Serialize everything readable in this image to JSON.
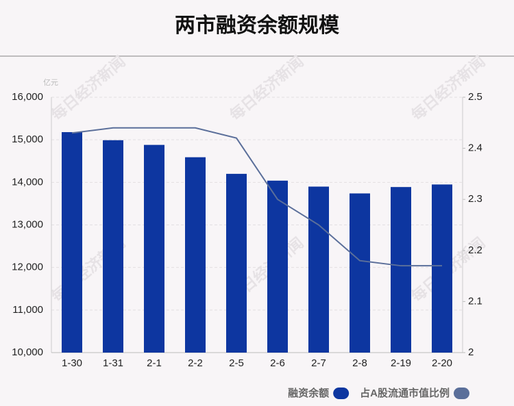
{
  "chart_data": {
    "type": "bar_line",
    "title": "两市融资余额规模",
    "unit_label": "亿元",
    "watermark": "每日经济新闻",
    "categories": [
      "1-30",
      "1-31",
      "2-1",
      "2-2",
      "2-5",
      "2-6",
      "2-7",
      "2-8",
      "2-19",
      "2-20"
    ],
    "series": [
      {
        "name": "融资余额",
        "type": "bar",
        "color": "#0d36a0",
        "values": [
          15180,
          14990,
          14880,
          14590,
          14200,
          14040,
          13900,
          13740,
          13890,
          13950
        ]
      },
      {
        "name": "占A股流通市值比例",
        "type": "line",
        "axis": "y2",
        "color": "#5b6f9a",
        "values": [
          2.43,
          2.44,
          2.44,
          2.44,
          2.42,
          2.3,
          2.25,
          2.18,
          2.17,
          2.17
        ]
      }
    ],
    "ylim": [
      10000,
      16000
    ],
    "yticks": [
      {
        "value": 10000,
        "label": "10,000"
      },
      {
        "value": 11000,
        "label": "11,000"
      },
      {
        "value": 12000,
        "label": "12,000"
      },
      {
        "value": 13000,
        "label": "13,000"
      },
      {
        "value": 14000,
        "label": "14,000"
      },
      {
        "value": 15000,
        "label": "15,000"
      },
      {
        "value": 16000,
        "label": "16,000"
      }
    ],
    "y2lim": [
      2,
      2.5
    ],
    "y2ticks": [
      2,
      2.1,
      2.2,
      2.3,
      2.4,
      2.5
    ],
    "grid": true,
    "legend": "bottom-right"
  }
}
